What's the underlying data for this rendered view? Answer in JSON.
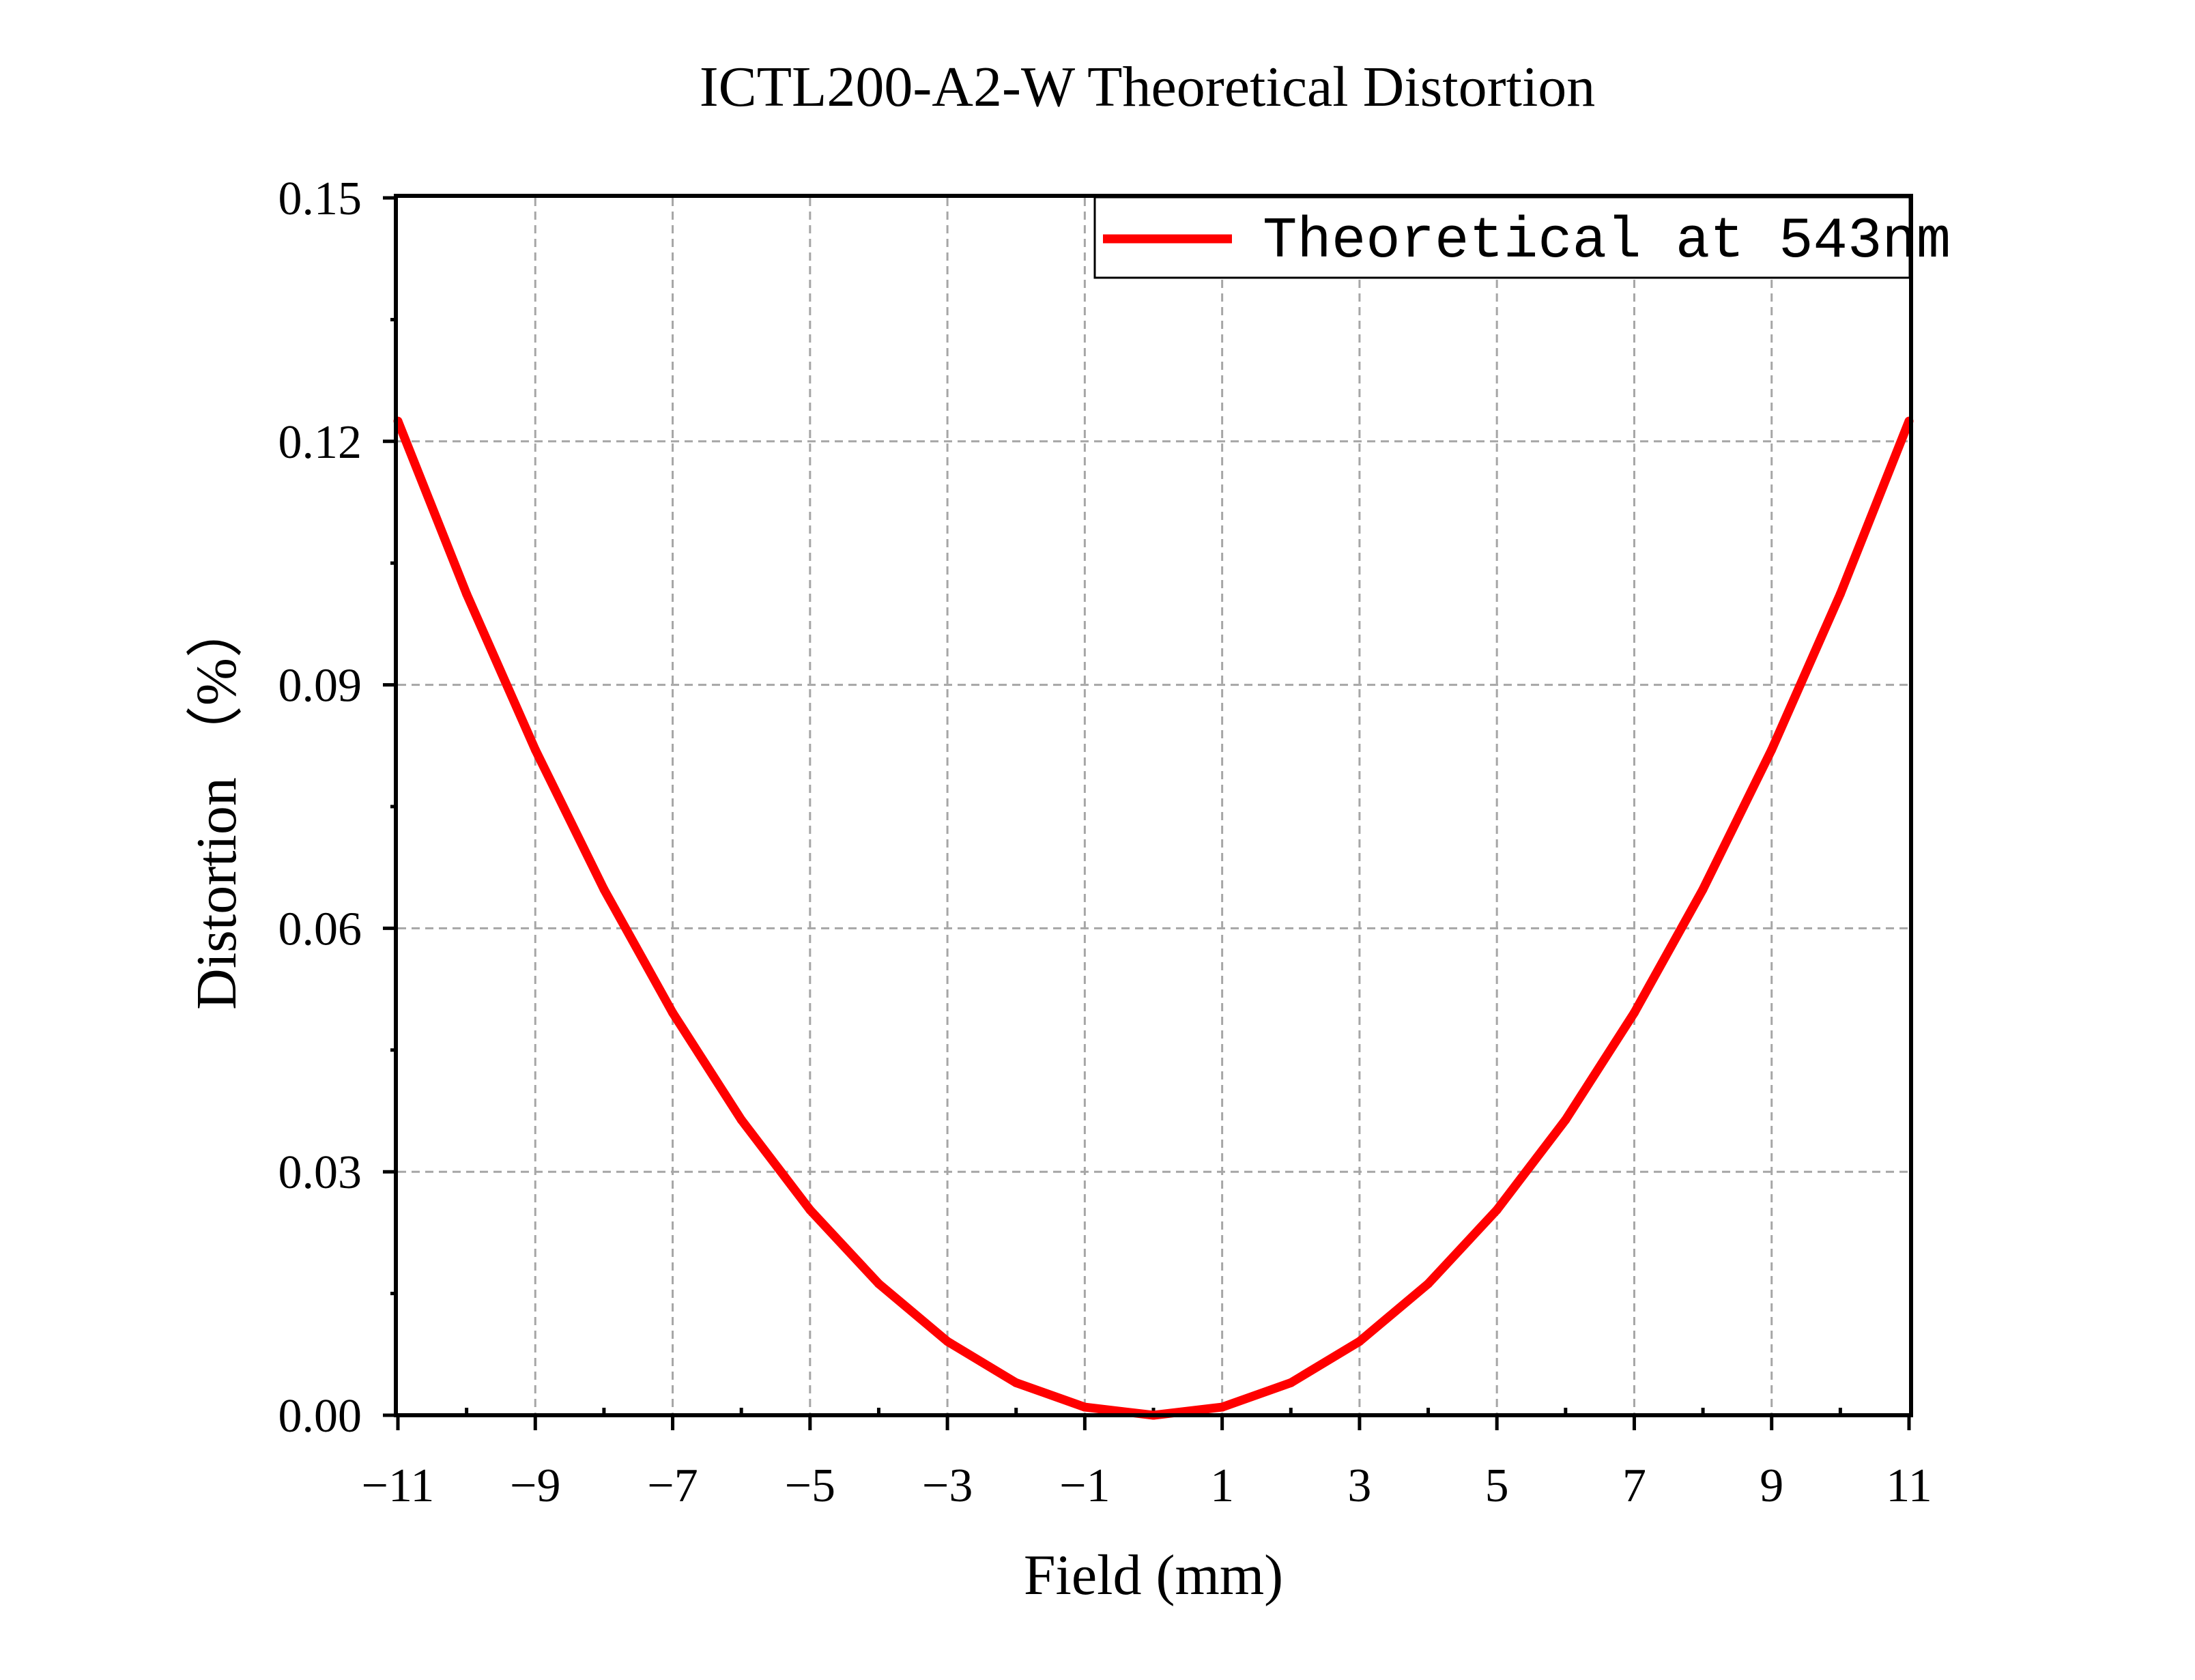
{
  "chart_data": {
    "type": "line",
    "title": "ICTL200-A2-W Theoretical Distortion",
    "xlabel": "Field (mm)",
    "ylabel": "Distortion （%）",
    "xlim": [
      -11,
      11
    ],
    "ylim": [
      0,
      0.15
    ],
    "xticks": [
      -11,
      -9,
      -7,
      -5,
      -3,
      -1,
      1,
      3,
      5,
      7,
      9,
      11
    ],
    "xtick_labels": [
      "−11",
      "−9",
      "−7",
      "−5",
      "−3",
      "−1",
      "1",
      "3",
      "5",
      "7",
      "9",
      "11"
    ],
    "yticks": [
      0,
      0.03,
      0.06,
      0.09,
      0.12,
      0.15
    ],
    "ytick_labels": [
      "0.00",
      "0.03",
      "0.06",
      "0.09",
      "0.12",
      "0.15"
    ],
    "grid": true,
    "legend_position": "top-right",
    "series": [
      {
        "name": "Theoretical at 543nm",
        "color": "#ff0000",
        "x": [
          -11,
          -10,
          -9,
          -8,
          -7,
          -6,
          -5,
          -4,
          -3,
          -2,
          -1,
          0,
          1,
          2,
          3,
          4,
          5,
          6,
          7,
          8,
          9,
          10,
          11
        ],
        "y": [
          0.1225,
          0.1012,
          0.082,
          0.0648,
          0.0496,
          0.0364,
          0.0253,
          0.0162,
          0.0091,
          0.004,
          0.001,
          0.0,
          0.001,
          0.004,
          0.0091,
          0.0162,
          0.0253,
          0.0364,
          0.0496,
          0.0648,
          0.082,
          0.1012,
          0.1225
        ]
      }
    ]
  }
}
